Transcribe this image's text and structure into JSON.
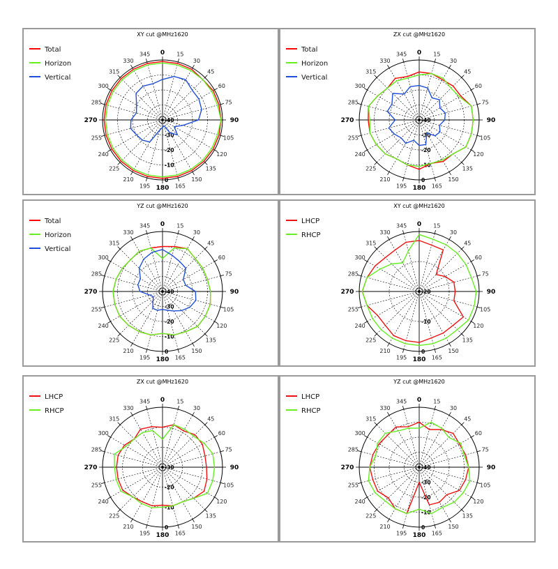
{
  "colors": {
    "Total": "#ff0000",
    "Horizon": "#66ee22",
    "Vertical": "#1f4fd8",
    "LHCP": "#ee1111",
    "RHCP": "#66ee22"
  },
  "angle_labels": [
    "0",
    "15",
    "30",
    "45",
    "60",
    "75",
    "90",
    "105",
    "120",
    "135",
    "150",
    "165",
    "180",
    "195",
    "210",
    "225",
    "240",
    "255",
    "270",
    "285",
    "300",
    "315",
    "330",
    "345"
  ],
  "chart_data": [
    {
      "type": "polar",
      "title": "XY cut @MHz1620",
      "radial_ticks": [
        "-40",
        "-30",
        "-20",
        "-10",
        "0"
      ],
      "rlim": [
        -40,
        0
      ],
      "legend": "top-left",
      "series": [
        {
          "name": "Total",
          "values": [
            -1,
            -1,
            -1,
            -2,
            -1,
            -1,
            -1,
            -1,
            -1,
            -1,
            -1,
            -1,
            -1,
            -1,
            -1,
            -1,
            -1,
            -1,
            -1,
            -1,
            -1,
            -1,
            -1,
            -1
          ]
        },
        {
          "name": "Horizon",
          "values": [
            -2,
            -2,
            -2,
            -2,
            -2,
            -2,
            -1,
            -2,
            -2,
            -2,
            -2,
            -2,
            -2,
            -2,
            -2,
            -2,
            -2,
            -2,
            -2,
            -2,
            -2,
            -2,
            -2,
            -2
          ]
        },
        {
          "name": "Vertical",
          "values": [
            -13,
            -10,
            -9,
            -12,
            -12,
            -13,
            -16,
            -26,
            -31,
            -26,
            -30,
            -36,
            -35,
            -33,
            -23,
            -21,
            -20,
            -18,
            -19,
            -22,
            -20,
            -15,
            -14,
            -15
          ]
        }
      ]
    },
    {
      "type": "polar",
      "title": "ZX cut @MHz1620",
      "radial_ticks": [
        "-40",
        "-30",
        "-20",
        "-10",
        "0"
      ],
      "rlim": [
        -40,
        0
      ],
      "legend": "top-left",
      "series": [
        {
          "name": "Total",
          "values": [
            -8,
            -8,
            -9,
            -8,
            -8,
            -4,
            -4,
            -4,
            -4,
            -8,
            -8,
            -10,
            -7,
            -9,
            -10,
            -8,
            -7,
            -6,
            -6,
            -5,
            -8,
            -10,
            -8,
            -10
          ]
        },
        {
          "name": "Horizon",
          "values": [
            -10,
            -8,
            -8,
            -10,
            -9,
            -4,
            -4,
            -4,
            -4,
            -8,
            -9,
            -10,
            -9,
            -9,
            -10,
            -8,
            -7,
            -6,
            -7,
            -5,
            -8,
            -10,
            -10,
            -11
          ]
        },
        {
          "name": "Vertical",
          "values": [
            -17,
            -18,
            -23,
            -21,
            -24,
            -22,
            -23,
            -26,
            -24,
            -25,
            -30,
            -23,
            -23,
            -26,
            -22,
            -23,
            -21,
            -19,
            -24,
            -18,
            -19,
            -15,
            -20,
            -17
          ]
        }
      ]
    },
    {
      "type": "polar",
      "title": "YZ cut @MHz1620",
      "radial_ticks": [
        "-40",
        "-30",
        "-20",
        "-10",
        "0"
      ],
      "rlim": [
        -40,
        0
      ],
      "legend": "top-left",
      "series": [
        {
          "name": "Total",
          "values": [
            -10,
            -9,
            -7,
            -9,
            -9,
            -9,
            -8,
            -7,
            -7,
            -7,
            -9,
            -10,
            -12,
            -10,
            -9,
            -8,
            -7,
            -7,
            -7,
            -8,
            -9,
            -10,
            -9,
            -10
          ]
        },
        {
          "name": "Horizon",
          "values": [
            -18,
            -10,
            -7,
            -9,
            -9,
            -9,
            -8,
            -7,
            -7,
            -7,
            -9,
            -10,
            -12,
            -10,
            -9,
            -8,
            -7,
            -7,
            -7,
            -8,
            -9,
            -10,
            -9,
            -10
          ]
        },
        {
          "name": "Vertical",
          "values": [
            -12,
            -15,
            -17,
            -18,
            -24,
            -24,
            -18,
            -17,
            -19,
            -22,
            -25,
            -27,
            -28,
            -27,
            -27,
            -31,
            -33,
            -31,
            -25,
            -23,
            -23,
            -18,
            -15,
            -13
          ]
        }
      ]
    },
    {
      "type": "polar",
      "title": "XY cut @MHz1620",
      "radial_ticks": [
        "-20",
        "-10",
        "0"
      ],
      "rlim": [
        -20,
        0
      ],
      "legend": "top-left",
      "series": [
        {
          "name": "LHCP",
          "values": [
            -3,
            -4,
            -4,
            -12,
            -10,
            -8,
            -8,
            -8,
            -3,
            -4,
            -4,
            -4,
            -3,
            -3,
            -3,
            -4,
            -4,
            -2,
            -1,
            -2,
            -3,
            -4,
            -4,
            -3
          ]
        },
        {
          "name": "RHCP",
          "values": [
            -1,
            -2,
            -2,
            -2,
            -2,
            -2,
            -1,
            -1,
            -1,
            -2,
            -2,
            -2,
            -2,
            -2,
            -2,
            -2,
            -2,
            -2,
            -1,
            -2,
            -5,
            -7,
            -9,
            -6
          ]
        }
      ]
    },
    {
      "type": "polar",
      "title": "ZX cut @MHz1620",
      "radial_ticks": [
        "-30",
        "-20",
        "-10",
        "0"
      ],
      "rlim": [
        -30,
        0
      ],
      "legend": "top-left",
      "series": [
        {
          "name": "LHCP",
          "values": [
            -10,
            -8,
            -9,
            -7,
            -7,
            -8,
            -8,
            -7,
            -6,
            -8,
            -10,
            -10,
            -11,
            -10,
            -10,
            -9,
            -7,
            -7,
            -7,
            -7,
            -8,
            -10,
            -8,
            -9
          ]
        },
        {
          "name": "RHCP",
          "values": [
            -16,
            -8,
            -8,
            -8,
            -6,
            -4,
            -4,
            -4,
            -4,
            -8,
            -10,
            -10,
            -10,
            -9,
            -9,
            -9,
            -6,
            -6,
            -6,
            -5,
            -9,
            -10,
            -10,
            -11
          ]
        }
      ]
    },
    {
      "type": "polar",
      "title": "YZ cut @MHz1620",
      "radial_ticks": [
        "-40",
        "-30",
        "-20",
        "-10",
        "0"
      ],
      "rlim": [
        -40,
        0
      ],
      "legend": "top-left",
      "series": [
        {
          "name": "LHCP",
          "values": [
            -10,
            -14,
            -11,
            -8,
            -9,
            -8,
            -7,
            -8,
            -9,
            -14,
            -13,
            -14,
            -30,
            -8,
            -8,
            -11,
            -8,
            -8,
            -7,
            -8,
            -9,
            -10,
            -9,
            -12
          ]
        },
        {
          "name": "RHCP",
          "values": [
            -14,
            -9,
            -10,
            -12,
            -8,
            -9,
            -7,
            -5,
            -6,
            -7,
            -9,
            -8,
            -12,
            -8,
            -8,
            -8,
            -6,
            -5,
            -7,
            -10,
            -8,
            -8,
            -12,
            -13
          ]
        }
      ]
    }
  ]
}
